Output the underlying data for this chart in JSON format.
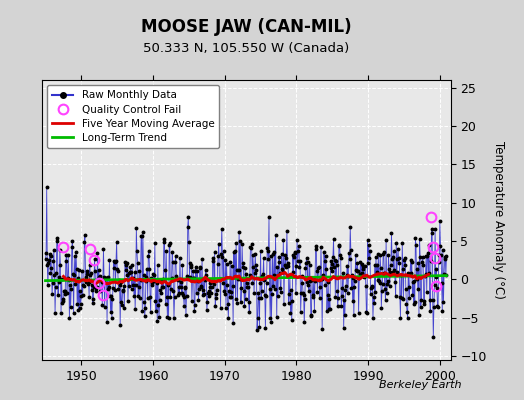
{
  "title": "MOOSE JAW (CAN-MIL)",
  "subtitle": "50.333 N, 105.550 W (Canada)",
  "ylabel": "Temperature Anomaly (°C)",
  "credit": "Berkeley Earth",
  "xlim": [
    1944.5,
    2001.5
  ],
  "ylim": [
    -10.5,
    26
  ],
  "yticks": [
    -10,
    -5,
    0,
    5,
    10,
    15,
    20,
    25
  ],
  "xticks": [
    1950,
    1960,
    1970,
    1980,
    1990,
    2000
  ],
  "bg_color": "#d4d4d4",
  "plot_bg_color": "#e8e8e8",
  "raw_line_color": "#3333cc",
  "raw_dot_color": "#000000",
  "moving_avg_color": "#dd0000",
  "trend_color": "#00bb00",
  "qc_fail_color": "#ff44ff",
  "seed": 137,
  "start_year": 1945,
  "end_year": 2001,
  "noise_std": 2.8,
  "trend_slope": 0.018,
  "trend_intercept": -0.35,
  "qc_fail_times": [
    1947.5,
    1951.25,
    1951.75,
    1952.5,
    1953.0,
    1998.75,
    1999.0,
    1999.25,
    1999.5
  ],
  "qc_fail_values": [
    4.2,
    4.0,
    2.5,
    -0.5,
    -2.0,
    8.2,
    4.2,
    2.8,
    -0.8
  ]
}
